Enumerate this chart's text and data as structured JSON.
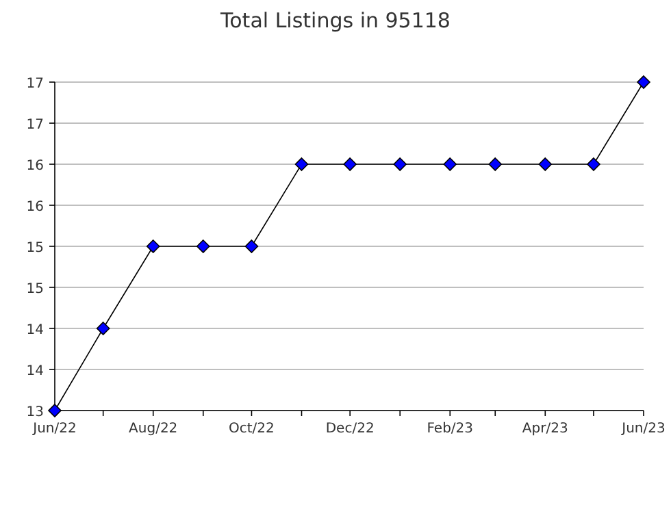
{
  "chart_data": {
    "type": "line",
    "title": "Total Listings in 95118",
    "x": [
      "2022-06",
      "2022-07",
      "2022-08",
      "2022-09",
      "2022-10",
      "2022-11",
      "2022-12",
      "2023-01",
      "2023-02",
      "2023-03",
      "2023-04",
      "2023-05",
      "2023-06"
    ],
    "series": [
      {
        "color": "#0000ff",
        "values": [
          13,
          14,
          15,
          15,
          15,
          16,
          16,
          16,
          16,
          16,
          16,
          16,
          17
        ]
      }
    ],
    "xlim": [
      "2022-06",
      "2023-06"
    ],
    "xticks": [
      {
        "value": "2022-06",
        "label": "Jun/22"
      },
      {
        "value": "2022-07",
        "label": null
      },
      {
        "value": "2022-08",
        "label": "Aug/22"
      },
      {
        "value": "2022-09",
        "label": null
      },
      {
        "value": "2022-10",
        "label": "Oct/22"
      },
      {
        "value": "2022-11",
        "label": null
      },
      {
        "value": "2022-12",
        "label": "Dec/22"
      },
      {
        "value": "2023-01",
        "label": null
      },
      {
        "value": "2023-02",
        "label": "Feb/23"
      },
      {
        "value": "2023-03",
        "label": null
      },
      {
        "value": "2023-04",
        "label": "Apr/23"
      },
      {
        "value": "2023-05",
        "label": null
      },
      {
        "value": "2023-06",
        "label": "Jun/23"
      }
    ],
    "ylim": [
      13,
      17
    ],
    "yticks": [
      13,
      {
        "value": 13.5,
        "label": "14"
      },
      14,
      {
        "value": 14.5,
        "label": "15"
      },
      15,
      {
        "value": 15.5,
        "label": "16"
      },
      16,
      {
        "value": 16.5,
        "label": "17"
      },
      17
    ],
    "grid": "y",
    "marker": "diamond",
    "line_style": "solid"
  }
}
